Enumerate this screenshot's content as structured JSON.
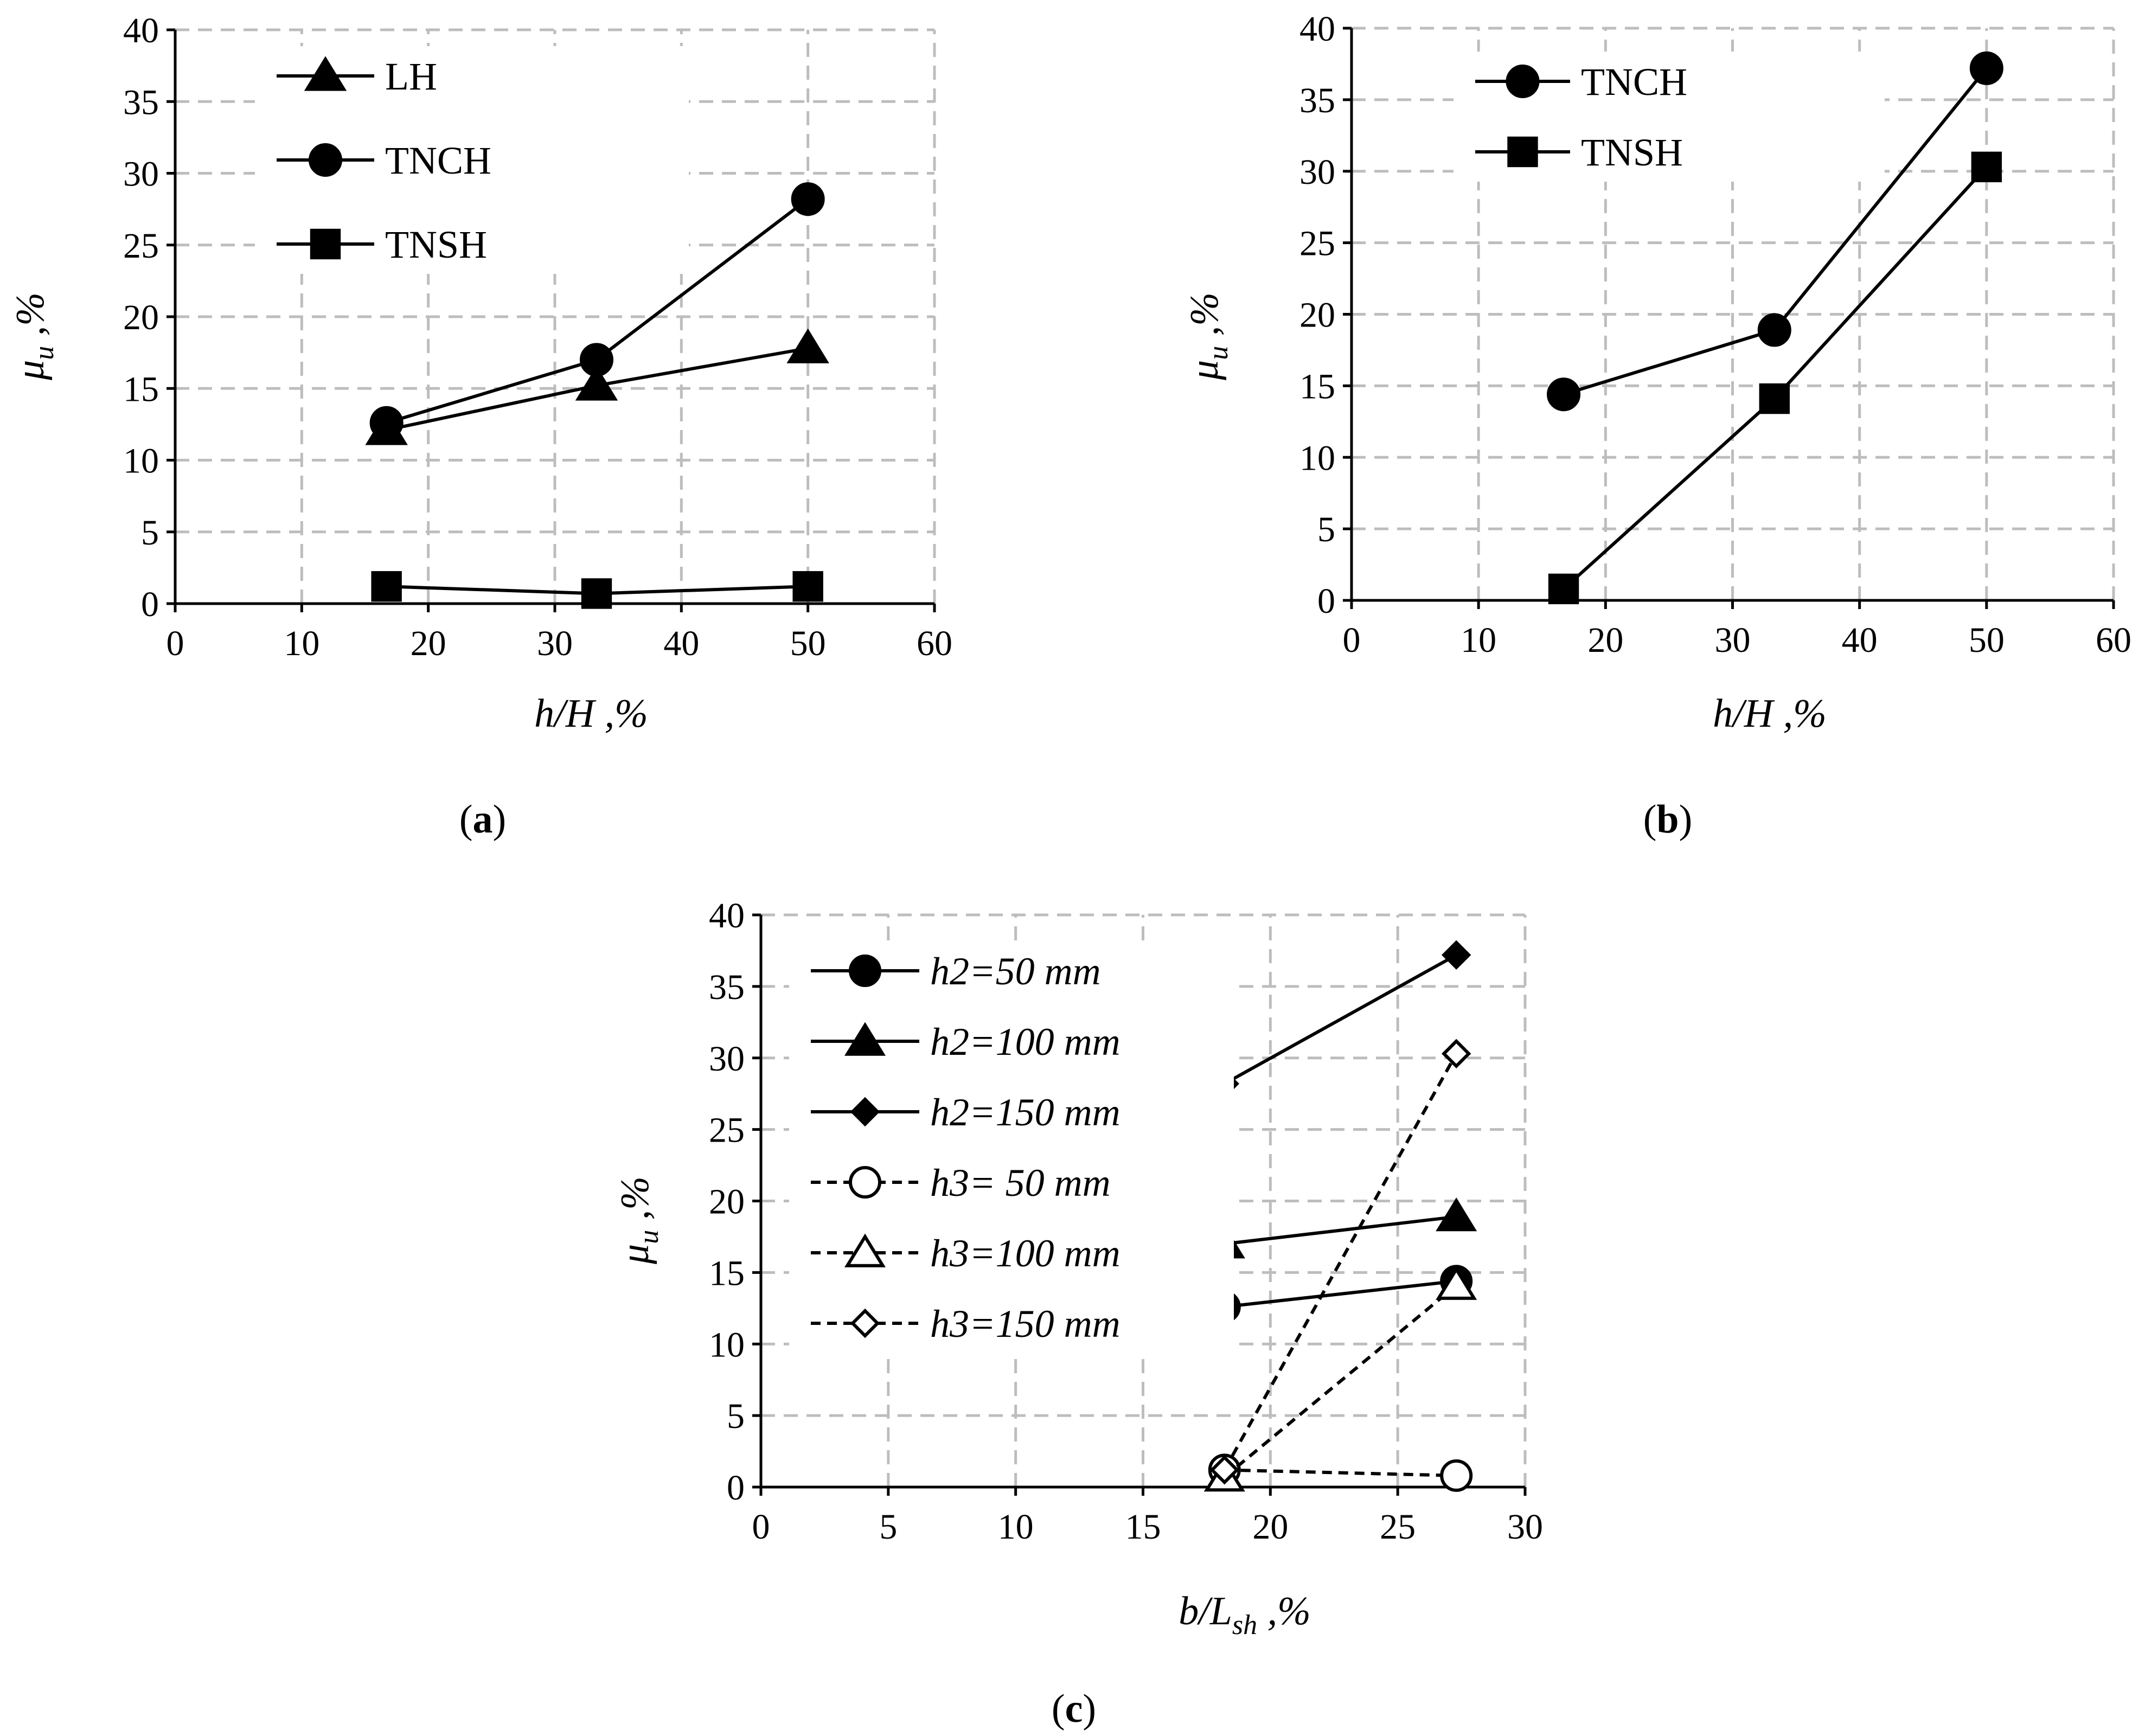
{
  "chart_data": [
    {
      "id": "a",
      "type": "line",
      "caption": "a",
      "xlabel": "h/H ,%",
      "ylabel": "μu ,%",
      "xlim": [
        0,
        60
      ],
      "ylim": [
        0,
        40
      ],
      "xticks": [
        0,
        10,
        20,
        30,
        40,
        50,
        60
      ],
      "yticks": [
        0,
        5,
        10,
        15,
        20,
        25,
        30,
        35,
        40
      ],
      "legend_position": "top-left",
      "series": [
        {
          "name": "LH",
          "marker": "triangle",
          "filled": true,
          "dashed": false,
          "x": [
            16.7,
            33.3,
            50
          ],
          "y": [
            12.1,
            15.2,
            17.8
          ]
        },
        {
          "name": "TNCH",
          "marker": "circle",
          "filled": true,
          "dashed": false,
          "x": [
            16.7,
            33.3,
            50
          ],
          "y": [
            12.6,
            17.0,
            28.2
          ]
        },
        {
          "name": "TNSH",
          "marker": "square",
          "filled": true,
          "dashed": false,
          "x": [
            16.7,
            33.3,
            50
          ],
          "y": [
            1.2,
            0.7,
            1.2
          ]
        }
      ]
    },
    {
      "id": "b",
      "type": "line",
      "caption": "b",
      "xlabel": "h/H ,%",
      "ylabel": "μu ,%",
      "xlim": [
        0,
        60
      ],
      "ylim": [
        0,
        40
      ],
      "xticks": [
        0,
        10,
        20,
        30,
        40,
        50,
        60
      ],
      "yticks": [
        0,
        5,
        10,
        15,
        20,
        25,
        30,
        35,
        40
      ],
      "legend_position": "top-left",
      "series": [
        {
          "name": "TNCH",
          "marker": "circle",
          "filled": true,
          "dashed": false,
          "x": [
            16.7,
            33.3,
            50
          ],
          "y": [
            14.4,
            18.9,
            37.2
          ]
        },
        {
          "name": "TNSH",
          "marker": "square",
          "filled": true,
          "dashed": false,
          "x": [
            16.7,
            33.3,
            50
          ],
          "y": [
            0.8,
            14.1,
            30.3
          ]
        }
      ]
    },
    {
      "id": "c",
      "type": "line",
      "caption": "c",
      "xlabel": "b/Lsh ,%",
      "ylabel": "μu ,%",
      "xlim": [
        0,
        30
      ],
      "ylim": [
        0,
        40
      ],
      "xticks": [
        0,
        5,
        10,
        15,
        20,
        25,
        30
      ],
      "yticks": [
        0,
        5,
        10,
        15,
        20,
        25,
        30,
        35,
        40
      ],
      "legend_position": "top-left",
      "series": [
        {
          "name": "h2=50 mm",
          "marker": "circle",
          "filled": true,
          "dashed": false,
          "x": [
            18.2,
            27.3
          ],
          "y": [
            12.6,
            14.4
          ]
        },
        {
          "name": "h2=100 mm",
          "marker": "triangle",
          "filled": true,
          "dashed": false,
          "x": [
            18.2,
            27.3
          ],
          "y": [
            17.0,
            18.9
          ]
        },
        {
          "name": "h2=150 mm",
          "marker": "diamond",
          "filled": true,
          "dashed": false,
          "x": [
            18.2,
            27.3
          ],
          "y": [
            28.2,
            37.2
          ]
        },
        {
          "name": "h3= 50 mm",
          "marker": "circle",
          "filled": false,
          "dashed": true,
          "x": [
            18.2,
            27.3
          ],
          "y": [
            1.2,
            0.8
          ]
        },
        {
          "name": "h3=100 mm",
          "marker": "triangle",
          "filled": false,
          "dashed": true,
          "x": [
            18.2,
            27.3
          ],
          "y": [
            0.7,
            14.1
          ]
        },
        {
          "name": "h3=150 mm",
          "marker": "diamond",
          "filled": false,
          "dashed": true,
          "x": [
            18.2,
            27.3
          ],
          "y": [
            1.2,
            30.3
          ]
        }
      ]
    }
  ]
}
